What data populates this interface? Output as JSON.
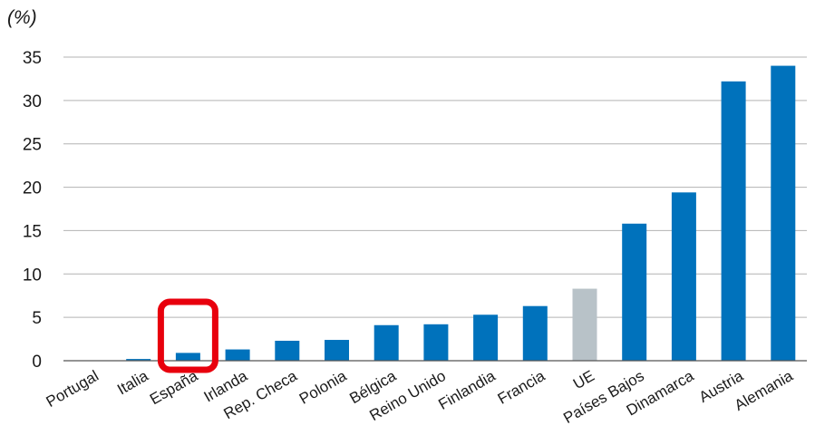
{
  "chart_data": {
    "type": "bar",
    "unit_label": "(%)",
    "categories": [
      "Portugal",
      "Italia",
      "España",
      "Irlanda",
      "Rep. Checa",
      "Polonia",
      "Bélgica",
      "Reino Unido",
      "Finlandia",
      "Francia",
      "UE",
      "Países Bajos",
      "Dinamarca",
      "Austria",
      "Alemania"
    ],
    "values": [
      0,
      0.2,
      0.9,
      1.3,
      2.3,
      2.4,
      4.1,
      4.2,
      5.3,
      6.3,
      8.3,
      15.8,
      19.4,
      32.2,
      34.0
    ],
    "colors": [
      "#0072bc",
      "#0072bc",
      "#0072bc",
      "#0072bc",
      "#0072bc",
      "#0072bc",
      "#0072bc",
      "#0072bc",
      "#0072bc",
      "#0072bc",
      "#b8c2c8",
      "#0072bc",
      "#0072bc",
      "#0072bc",
      "#0072bc"
    ],
    "ylim": [
      0,
      35
    ],
    "yticks": [
      0,
      5,
      10,
      15,
      20,
      25,
      30,
      35
    ],
    "grid": true,
    "highlight": {
      "category": "España",
      "color": "#e8000d"
    }
  }
}
